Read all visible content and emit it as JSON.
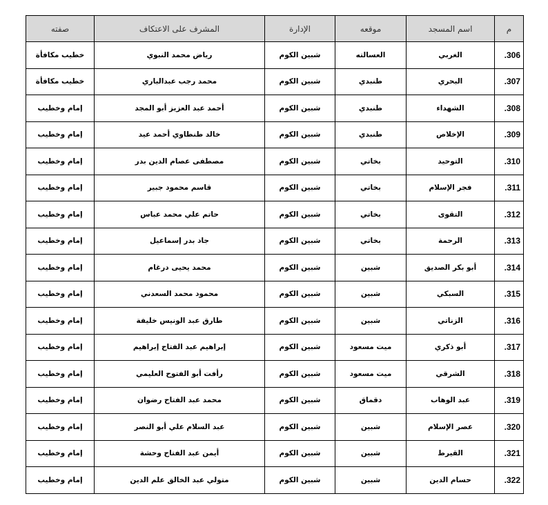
{
  "headers": [
    "م",
    "اسم المسجد",
    "موقعه",
    "الإدارة",
    "المشرف على الاعتكاف",
    "صفته"
  ],
  "colors": {
    "header_bg": "#d9d9d9",
    "border": "#000000"
  },
  "rows": [
    [
      "306.",
      "الغربي",
      "العسالته",
      "شبين الكوم",
      "رياض محمد النبوي",
      "خطيب مكافأة"
    ],
    [
      "307.",
      "البحري",
      "طنبدي",
      "شبين الكوم",
      "محمد رجب عبدالباري",
      "خطيب مكافأة"
    ],
    [
      "308.",
      "الشهداء",
      "طنبدي",
      "شبين الكوم",
      "أحمد عبد العزيز أبو المجد",
      "إمام وخطيب"
    ],
    [
      "309.",
      "الإخلاص",
      "طنبدي",
      "شبين الكوم",
      "خالد طنطاوي أحمد عيد",
      "إمام وخطيب"
    ],
    [
      "310.",
      "التوحيد",
      "بخاتي",
      "شبين الكوم",
      "مصطفى عصام الدين بدر",
      "إمام وخطيب"
    ],
    [
      "311.",
      "فجر الإسلام",
      "بخاتي",
      "شبين الكوم",
      "قاسم محمود جبير",
      "إمام وخطيب"
    ],
    [
      "312.",
      "التقوى",
      "بخاتي",
      "شبين الكوم",
      "حاتم علي محمد عباس",
      "إمام وخطيب"
    ],
    [
      "313.",
      "الرحمة",
      "بخاتي",
      "شبين الكوم",
      "جاد بدر إسماعيل",
      "إمام وخطيب"
    ],
    [
      "314.",
      "أبو بكر الصديق",
      "شبين",
      "شبين الكوم",
      "محمد يحيى درغام",
      "إمام وخطيب"
    ],
    [
      "315.",
      "السبكي",
      "شبين",
      "شبين الكوم",
      "محمود محمد السعدني",
      "إمام وخطيب"
    ],
    [
      "316.",
      "الزناتي",
      "شبين",
      "شبين الكوم",
      "طارق عبد الونيس خليفة",
      "إمام وخطيب"
    ],
    [
      "317.",
      "أبو ذكري",
      "ميت مسعود",
      "شبين الكوم",
      "إبراهيم عبد الفتاح إبراهيم",
      "إمام وخطيب"
    ],
    [
      "318.",
      "الشرقي",
      "ميت مسعود",
      "شبين الكوم",
      "رأفت أبو الفتوح العليمي",
      "إمام وخطيب"
    ],
    [
      "319.",
      "عبد الوهاب",
      "دقماق",
      "شبين الكوم",
      "محمد عبد الفتاح رضوان",
      "إمام وخطيب"
    ],
    [
      "320.",
      "عصر الإسلام",
      "شبين",
      "شبين الكوم",
      "عبد السلام علي أبو النصر",
      "إمام وخطيب"
    ],
    [
      "321.",
      "القيرط",
      "شبين",
      "شبين الكوم",
      "أيمن عبد الفتاح وحشة",
      "إمام وخطيب"
    ],
    [
      "322.",
      "حسام الدين",
      "شبين",
      "شبين الكوم",
      "متولي عبد الخالق علم الدين",
      "إمام وخطيب"
    ]
  ]
}
